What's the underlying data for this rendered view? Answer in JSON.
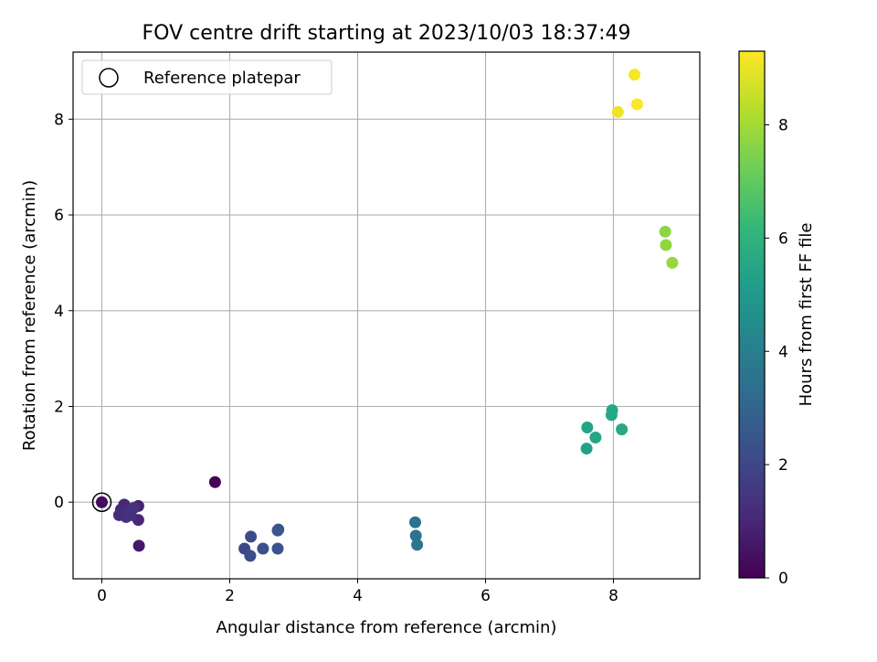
{
  "chart_data": {
    "type": "scatter",
    "title": "FOV centre drift starting at 2023/10/03 18:37:49",
    "xlabel": "Angular distance from reference (arcmin)",
    "ylabel": "Rotation from reference (arcmin)",
    "xlim": [
      -0.45,
      9.35
    ],
    "ylim": [
      -1.6,
      9.4
    ],
    "xticks": [
      0,
      2,
      4,
      6,
      8
    ],
    "yticks": [
      0,
      2,
      4,
      6,
      8
    ],
    "grid": true,
    "legend": {
      "placement": "top-left",
      "entries": [
        "Reference platepar"
      ]
    },
    "reference_point": {
      "x": 0,
      "y": 0,
      "label": "Reference platepar"
    },
    "colorbar": {
      "label": "Hours from first FF file",
      "colormap": "viridis",
      "range": [
        0,
        9.3
      ],
      "ticks": [
        0,
        2,
        4,
        6,
        8
      ]
    },
    "points": [
      {
        "x": 1.77,
        "y": 0.42,
        "hours": 0.1
      },
      {
        "x": 0.0,
        "y": 0.0,
        "hours": 0.3
      },
      {
        "x": 0.58,
        "y": -0.91,
        "hours": 0.6
      },
      {
        "x": 0.57,
        "y": -0.08,
        "hours": 0.9
      },
      {
        "x": 0.57,
        "y": -0.37,
        "hours": 1.0
      },
      {
        "x": 0.35,
        "y": -0.05,
        "hours": 1.05
      },
      {
        "x": 0.3,
        "y": -0.15,
        "hours": 1.1
      },
      {
        "x": 0.27,
        "y": -0.27,
        "hours": 1.15
      },
      {
        "x": 0.33,
        "y": -0.22,
        "hours": 1.2
      },
      {
        "x": 0.38,
        "y": -0.31,
        "hours": 1.25
      },
      {
        "x": 0.42,
        "y": -0.18,
        "hours": 1.3
      },
      {
        "x": 0.45,
        "y": -0.27,
        "hours": 1.35
      },
      {
        "x": 0.5,
        "y": -0.12,
        "hours": 1.4
      },
      {
        "x": 2.23,
        "y": -0.97,
        "hours": 2.0
      },
      {
        "x": 2.33,
        "y": -0.72,
        "hours": 2.1
      },
      {
        "x": 2.32,
        "y": -1.12,
        "hours": 2.2
      },
      {
        "x": 2.52,
        "y": -0.97,
        "hours": 2.3
      },
      {
        "x": 2.75,
        "y": -0.97,
        "hours": 2.4
      },
      {
        "x": 2.75,
        "y": -0.59,
        "hours": 2.5
      },
      {
        "x": 2.76,
        "y": -0.57,
        "hours": 2.55
      },
      {
        "x": 4.9,
        "y": -0.42,
        "hours": 3.5
      },
      {
        "x": 4.91,
        "y": -0.7,
        "hours": 3.55
      },
      {
        "x": 4.93,
        "y": -0.89,
        "hours": 3.6
      },
      {
        "x": 7.58,
        "y": 1.12,
        "hours": 5.3
      },
      {
        "x": 7.59,
        "y": 1.56,
        "hours": 5.4
      },
      {
        "x": 7.72,
        "y": 1.35,
        "hours": 5.45
      },
      {
        "x": 7.97,
        "y": 1.82,
        "hours": 5.5
      },
      {
        "x": 7.98,
        "y": 1.92,
        "hours": 5.55
      },
      {
        "x": 8.13,
        "y": 1.52,
        "hours": 5.6
      },
      {
        "x": 8.81,
        "y": 5.65,
        "hours": 7.7
      },
      {
        "x": 8.82,
        "y": 5.37,
        "hours": 7.75
      },
      {
        "x": 8.92,
        "y": 5.0,
        "hours": 7.8
      },
      {
        "x": 8.07,
        "y": 8.15,
        "hours": 9.1
      },
      {
        "x": 8.33,
        "y": 8.93,
        "hours": 9.2
      },
      {
        "x": 8.37,
        "y": 8.31,
        "hours": 9.25
      }
    ]
  }
}
